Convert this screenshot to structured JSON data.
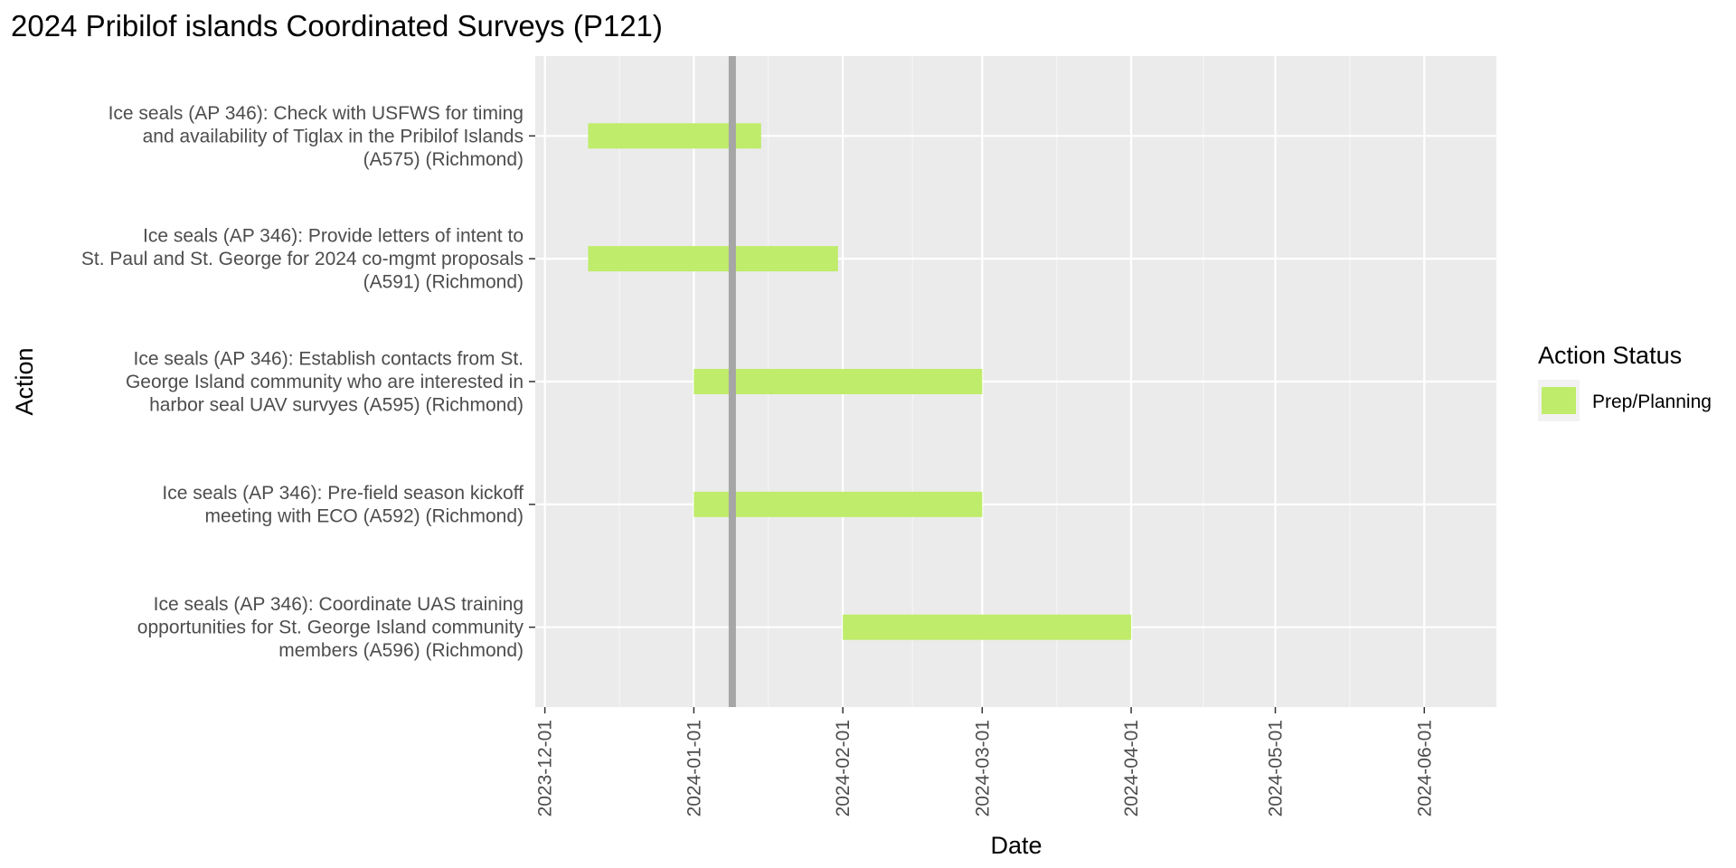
{
  "chart_data": {
    "type": "gantt",
    "title": "2024 Pribilof islands Coordinated Surveys (P121)",
    "xlabel": "Date",
    "ylabel": "Action",
    "xlim": [
      "2023-11-29",
      "2024-06-16"
    ],
    "x_ticks": [
      "2023-12-01",
      "2024-01-01",
      "2024-02-01",
      "2024-03-01",
      "2024-04-01",
      "2024-05-01",
      "2024-06-01"
    ],
    "today": "2024-01-09",
    "grid": true,
    "legend": {
      "title": "Action Status",
      "position": "right",
      "entries": [
        {
          "label": "Prep/Planning",
          "color": "#bfec6a"
        }
      ]
    },
    "tasks": [
      {
        "label_lines": [
          "Ice seals (AP 346): Check with USFWS for timing",
          "and availability of Tiglax in the Pribilof Islands",
          "(A575) (Richmond)"
        ],
        "start": "2023-12-10",
        "end": "2024-01-15",
        "status": "Prep/Planning"
      },
      {
        "label_lines": [
          "Ice seals (AP 346): Provide letters of intent to",
          "St. Paul and St. George for 2024 co-mgmt proposals",
          "(A591) (Richmond)"
        ],
        "start": "2023-12-10",
        "end": "2024-01-31",
        "status": "Prep/Planning"
      },
      {
        "label_lines": [
          "Ice seals (AP 346): Establish contacts from St.",
          "George Island community who are interested in",
          "harbor seal UAV survyes (A595) (Richmond)"
        ],
        "start": "2024-01-01",
        "end": "2024-03-01",
        "status": "Prep/Planning"
      },
      {
        "label_lines": [
          "Ice seals (AP 346): Pre-field season kickoff",
          "meeting with ECO (A592) (Richmond)"
        ],
        "start": "2024-01-01",
        "end": "2024-03-01",
        "status": "Prep/Planning"
      },
      {
        "label_lines": [
          "Ice seals (AP 346): Coordinate UAS training",
          "opportunities for St. George Island community",
          "members (A596) (Richmond)"
        ],
        "start": "2024-02-01",
        "end": "2024-04-01",
        "status": "Prep/Planning"
      }
    ]
  }
}
